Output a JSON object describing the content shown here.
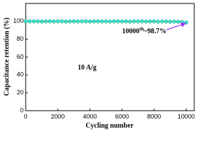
{
  "chart_data": {
    "type": "line",
    "xlabel": "Cycling number",
    "ylabel": "Capacitance retention (%)",
    "annotation": [
      "10000",
      "th",
      "~98.7%"
    ],
    "label": "10 A/g",
    "x": [
      0,
      250,
      500,
      750,
      1000,
      1250,
      1500,
      1750,
      2000,
      2250,
      2500,
      2750,
      3000,
      3250,
      3500,
      3750,
      4000,
      4250,
      4500,
      4750,
      5000,
      5250,
      5500,
      5750,
      6000,
      6250,
      6500,
      6750,
      7000,
      7250,
      7500,
      7750,
      8000,
      8250,
      8500,
      8750,
      9000,
      9250,
      9500,
      9750,
      10000
    ],
    "series": [
      {
        "name": "Capacitance retention",
        "color": "#3ee0c8",
        "line_color": "#000000",
        "values": [
          100,
          100,
          100,
          100,
          99.8,
          100,
          100,
          99.9,
          100,
          100,
          99.8,
          100,
          100,
          99.9,
          100,
          100,
          99.8,
          100,
          100,
          99.9,
          100,
          99.8,
          100,
          100,
          99.9,
          100,
          99.7,
          100,
          99.9,
          100,
          99.8,
          99.9,
          100,
          99.7,
          99.9,
          99.8,
          99.6,
          99.8,
          99.5,
          99.3,
          98.7
        ]
      }
    ],
    "xlim": [
      0,
      10500
    ],
    "xticks": [
      0,
      2000,
      4000,
      6000,
      8000,
      10000
    ],
    "ylim": [
      0,
      120
    ],
    "yticks": [
      0,
      20,
      40,
      60,
      80,
      100
    ],
    "arrow_color": "#9933ff"
  }
}
